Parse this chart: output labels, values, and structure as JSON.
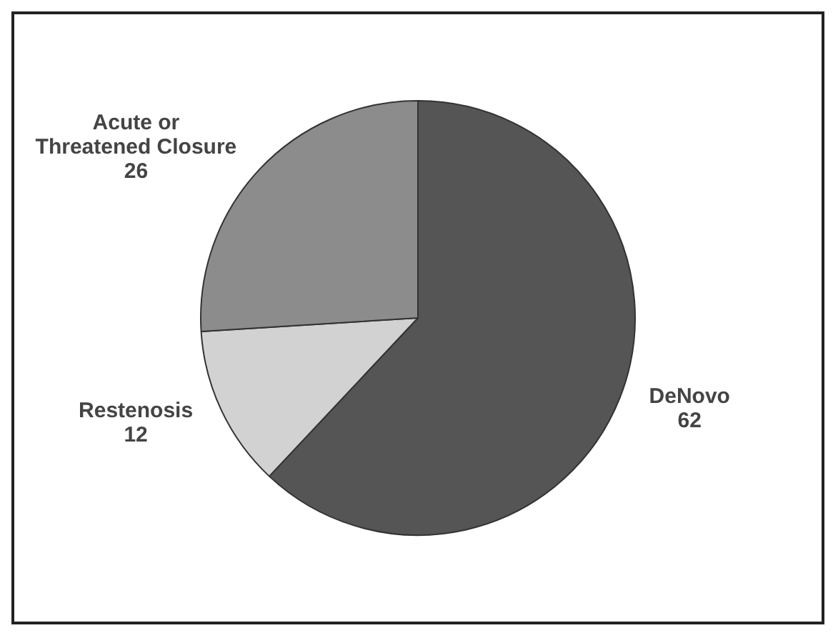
{
  "chart_data": {
    "type": "pie",
    "categories": [
      "DeNovo",
      "Restenosis",
      "Acute or Threatened Closure"
    ],
    "values": [
      62,
      12,
      26
    ],
    "colors": [
      "#555555",
      "#d2d2d2",
      "#8c8c8c"
    ],
    "data_labels": true,
    "legend": false
  }
}
